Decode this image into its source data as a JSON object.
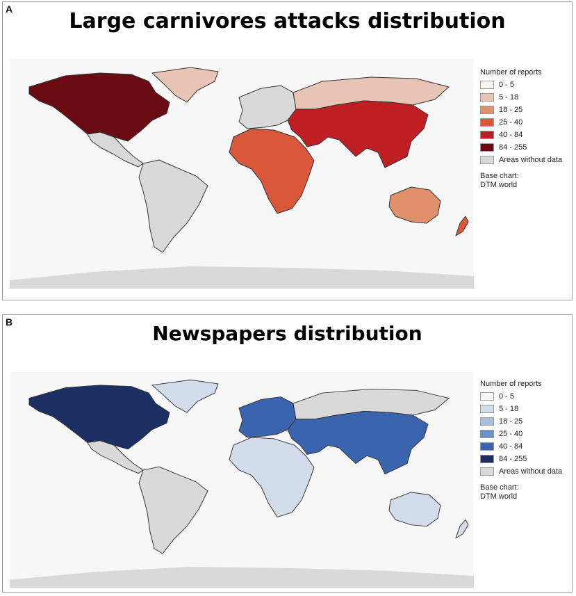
{
  "panels": [
    {
      "letter": "A",
      "title": "Large carnivores attacks distribution",
      "legend": {
        "title": "Number of reports",
        "items": [
          {
            "label": "0 - 5",
            "color": "#fbf6f2"
          },
          {
            "label": "5 - 18",
            "color": "#e8c4b4"
          },
          {
            "label": "18 - 25",
            "color": "#e0906a"
          },
          {
            "label": "25 - 40",
            "color": "#d9573a"
          },
          {
            "label": "40 - 84",
            "color": "#bf1f22"
          },
          {
            "label": "84 - 255",
            "color": "#6a0a12"
          }
        ],
        "no_data_label": "Areas without data",
        "no_data_color": "#d9d9d9",
        "base_chart_label": "Base chart:",
        "base_chart_value": "DTM world"
      },
      "regions": {
        "north_america": "84 - 255",
        "greenland": "5 - 18",
        "central_america": "Areas without data",
        "south_america": "Areas without data",
        "europe": "Areas without data",
        "russia_north_asia": "5 - 18",
        "middle_east_south_east_asia": "40 - 84",
        "africa": "25 - 40",
        "australia": "18 - 25",
        "new_zealand": "25 - 40",
        "antarctica": "Areas without data"
      }
    },
    {
      "letter": "B",
      "title": "Newspapers distribution",
      "legend": {
        "title": "Number of reports",
        "items": [
          {
            "label": "0 - 5",
            "color": "#f6f8fb"
          },
          {
            "label": "5 - 18",
            "color": "#d2dcea"
          },
          {
            "label": "18 - 25",
            "color": "#a9c0dc"
          },
          {
            "label": "25 - 40",
            "color": "#6b92c6"
          },
          {
            "label": "40 - 84",
            "color": "#3a64ad"
          },
          {
            "label": "84 - 255",
            "color": "#1b2f63"
          }
        ],
        "no_data_label": "Areas without data",
        "no_data_color": "#d9d9d9",
        "base_chart_label": "Base chart:",
        "base_chart_value": "DTM world"
      },
      "regions": {
        "north_america": "84 - 255",
        "greenland": "5 - 18",
        "central_america": "Areas without data",
        "south_america": "Areas without data",
        "europe": "40 - 84",
        "russia_north_asia": "Areas without data",
        "middle_east_south_east_asia": "40 - 84",
        "africa": "5 - 18",
        "australia": "5 - 18",
        "new_zealand": "5 - 18",
        "antarctica": "Areas without data"
      }
    }
  ]
}
